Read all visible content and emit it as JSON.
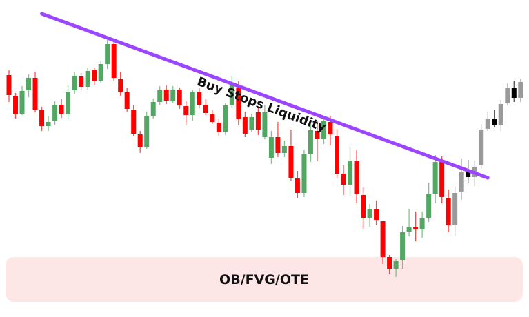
{
  "chart_data": {
    "type": "candlestick",
    "title": "",
    "xlabel": "",
    "ylabel": "",
    "axes_visible": false,
    "grid": false,
    "ohlc_format": [
      "open",
      "high",
      "low",
      "close"
    ],
    "candles": [
      [
        351,
        358,
        312,
        322
      ],
      [
        321,
        325,
        288,
        294
      ],
      [
        294,
        335,
        293,
        328
      ],
      [
        329,
        352,
        319,
        347
      ],
      [
        347,
        356,
        297,
        301
      ],
      [
        300,
        305,
        270,
        277
      ],
      [
        277,
        292,
        270,
        283
      ],
      [
        284,
        313,
        279,
        308
      ],
      [
        308,
        316,
        289,
        295
      ],
      [
        295,
        336,
        287,
        326
      ],
      [
        329,
        355,
        324,
        350
      ],
      [
        349,
        354,
        330,
        334
      ],
      [
        334,
        362,
        330,
        357
      ],
      [
        358,
        362,
        337,
        343
      ],
      [
        343,
        372,
        340,
        367
      ],
      [
        367,
        402,
        360,
        396
      ],
      [
        396,
        400,
        343,
        347
      ],
      [
        345,
        356,
        321,
        327
      ],
      [
        326,
        332,
        298,
        302
      ],
      [
        301,
        308,
        263,
        266
      ],
      [
        265,
        270,
        238,
        247
      ],
      [
        246,
        298,
        244,
        292
      ],
      [
        292,
        317,
        288,
        312
      ],
      [
        312,
        335,
        308,
        329
      ],
      [
        330,
        336,
        309,
        314
      ],
      [
        313,
        335,
        310,
        330
      ],
      [
        330,
        333,
        302,
        307
      ],
      [
        306,
        313,
        278,
        293
      ],
      [
        293,
        330,
        285,
        327
      ],
      [
        327,
        333,
        303,
        308
      ],
      [
        308,
        316,
        293,
        296
      ],
      [
        295,
        300,
        280,
        283
      ],
      [
        282,
        288,
        263,
        269
      ],
      [
        269,
        310,
        264,
        307
      ],
      [
        307,
        350,
        303,
        340
      ],
      [
        332,
        342,
        278,
        287
      ],
      [
        290,
        298,
        261,
        266
      ],
      [
        272,
        295,
        268,
        290
      ],
      [
        297,
        305,
        264,
        272
      ],
      [
        261,
        307,
        258,
        297
      ],
      [
        231,
        270,
        222,
        261
      ],
      [
        261,
        283,
        232,
        238
      ],
      [
        238,
        256,
        232,
        248
      ],
      [
        248,
        272,
        198,
        202
      ],
      [
        201,
        212,
        173,
        180
      ],
      [
        180,
        242,
        174,
        236
      ],
      [
        236,
        280,
        225,
        271
      ],
      [
        270,
        284,
        226,
        258
      ],
      [
        258,
        292,
        251,
        284
      ],
      [
        283,
        292,
        249,
        265
      ],
      [
        263,
        273,
        202,
        208
      ],
      [
        208,
        220,
        177,
        192
      ],
      [
        192,
        246,
        175,
        226
      ],
      [
        226,
        242,
        165,
        178
      ],
      [
        177,
        189,
        128,
        144
      ],
      [
        144,
        164,
        131,
        156
      ],
      [
        156,
        169,
        133,
        141
      ],
      [
        139,
        139,
        77,
        87
      ],
      [
        87,
        90,
        62,
        70
      ],
      [
        70,
        84,
        58,
        81
      ],
      [
        82,
        132,
        70,
        123
      ],
      [
        124,
        157,
        117,
        130
      ],
      [
        131,
        153,
        110,
        127
      ],
      [
        127,
        153,
        115,
        143
      ],
      [
        144,
        195,
        138,
        178
      ],
      [
        178,
        235,
        165,
        225
      ],
      [
        225,
        233,
        165,
        174
      ],
      [
        173,
        185,
        123,
        133
      ]
    ],
    "projected_candles": [
      [
        133,
        190,
        117,
        180
      ],
      [
        182,
        230,
        170,
        210
      ],
      [
        210,
        228,
        195,
        203
      ],
      [
        203,
        227,
        190,
        218
      ],
      [
        220,
        280,
        215,
        272
      ],
      [
        273,
        298,
        270,
        288
      ],
      [
        288,
        300,
        275,
        278
      ],
      [
        278,
        315,
        270,
        309
      ],
      [
        310,
        340,
        307,
        333
      ],
      [
        333,
        343,
        312,
        318
      ],
      [
        318,
        346,
        312,
        341
      ]
    ],
    "colors": {
      "bullish": "#52a862",
      "bearish": "#ff0000",
      "projected_bullish": "#9a9a9a",
      "projected_bearish": "#000000",
      "trendline": "#9b45ff",
      "zone": "#fde6e6"
    },
    "trendline": {
      "from_candle": 5,
      "from_price": 440,
      "to_candle": 73,
      "to_price": 202,
      "label": "Buy Stops Liquidity"
    },
    "zone": {
      "label": "OB/FVG/OTE"
    }
  }
}
